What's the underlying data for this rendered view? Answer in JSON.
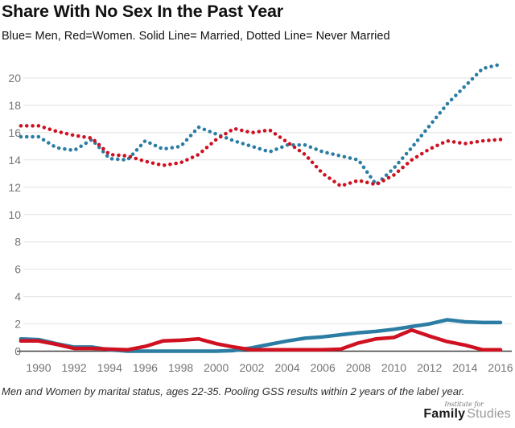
{
  "header": {
    "title": "Share With No Sex In the Past Year",
    "subtitle": "Blue= Men, Red=Women. Solid Line= Married, Dotted Line= Never Married"
  },
  "colors": {
    "men_blue": "#2b7da3",
    "women_red": "#cf1121",
    "grid": "#e2e2e2",
    "axis_line": "#3f3f3f",
    "tick_text": "#757575"
  },
  "chart_data": {
    "type": "line",
    "title": "Share With No Sex In the Past Year",
    "xlabel": "",
    "ylabel": "",
    "x": [
      1989,
      1990,
      1991,
      1992,
      1993,
      1994,
      1995,
      1996,
      1997,
      1998,
      1999,
      2000,
      2001,
      2002,
      2003,
      2004,
      2005,
      2006,
      2007,
      2008,
      2009,
      2010,
      2011,
      2012,
      2013,
      2014,
      2015,
      2016
    ],
    "series": [
      {
        "name": "Men, Never Married",
        "style": "dotted",
        "color": "#2b7da3",
        "values": [
          15.7,
          15.7,
          14.9,
          14.7,
          15.5,
          14.1,
          14.0,
          15.4,
          14.8,
          15.0,
          16.4,
          15.9,
          15.4,
          15.0,
          14.6,
          15.1,
          15.1,
          14.6,
          14.3,
          14.0,
          12.2,
          13.4,
          14.9,
          16.5,
          18.1,
          19.4,
          20.7,
          21.0
        ]
      },
      {
        "name": "Women, Never Married",
        "style": "dotted",
        "color": "#cf1121",
        "values": [
          16.5,
          16.5,
          16.1,
          15.8,
          15.6,
          14.4,
          14.3,
          13.9,
          13.6,
          13.8,
          14.4,
          15.5,
          16.3,
          16.0,
          16.2,
          15.3,
          14.4,
          13.0,
          12.1,
          12.5,
          12.2,
          12.9,
          14.0,
          14.8,
          15.4,
          15.2,
          15.4,
          15.5
        ]
      },
      {
        "name": "Men, Married",
        "style": "solid",
        "color": "#2b7da3",
        "values": [
          0.9,
          0.85,
          0.55,
          0.3,
          0.3,
          0.1,
          0.0,
          0.0,
          0.0,
          0.0,
          0.0,
          0.0,
          0.05,
          0.25,
          0.5,
          0.75,
          0.95,
          1.05,
          1.2,
          1.35,
          1.45,
          1.6,
          1.8,
          2.0,
          2.3,
          2.15,
          2.1,
          2.1
        ]
      },
      {
        "name": "Women, Married",
        "style": "solid",
        "color": "#cf1121",
        "values": [
          0.75,
          0.75,
          0.5,
          0.2,
          0.2,
          0.15,
          0.1,
          0.35,
          0.75,
          0.8,
          0.9,
          0.55,
          0.3,
          0.1,
          0.1,
          0.1,
          0.1,
          0.1,
          0.15,
          0.6,
          0.9,
          1.0,
          1.55,
          1.1,
          0.7,
          0.45,
          0.1,
          0.1
        ]
      }
    ],
    "yticks": [
      0,
      2,
      4,
      6,
      8,
      10,
      12,
      14,
      16,
      18,
      20
    ],
    "xticks": [
      1990,
      1992,
      1994,
      1996,
      1998,
      2000,
      2002,
      2004,
      2006,
      2008,
      2010,
      2012,
      2014,
      2016
    ],
    "xlim": [
      1989,
      2016
    ],
    "ylim": [
      0,
      21.6
    ],
    "grid": true,
    "legend_position": "none"
  },
  "footer": {
    "note": "Men and Women by marital status, ages 22-35. Pooling GSS results within 2 years of the label year."
  },
  "logo": {
    "pretext": "Institute for",
    "family": "Family",
    "studies": "Studies"
  }
}
